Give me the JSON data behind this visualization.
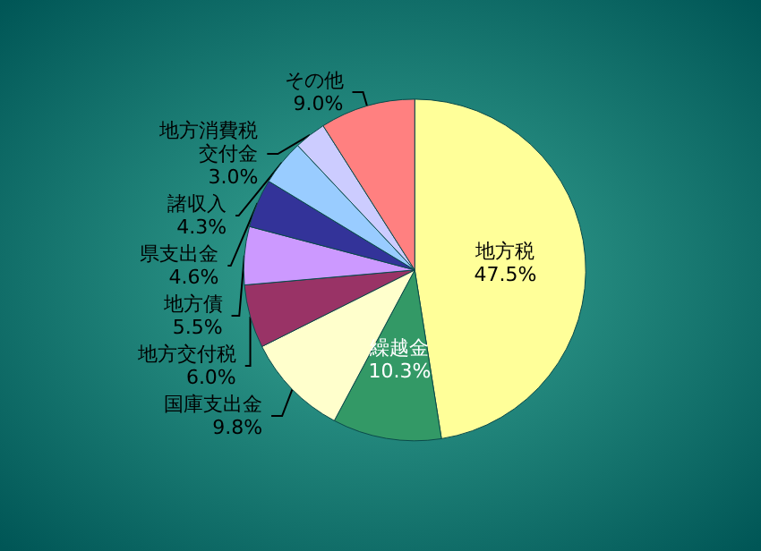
{
  "chart_data": {
    "type": "pie",
    "categories": [
      "地方税",
      "繰越金",
      "国庫支出金",
      "地方交付税",
      "地方債",
      "県支出金",
      "諸収入",
      "地方消費税交付金",
      "その他"
    ],
    "values": [
      47.5,
      10.3,
      9.8,
      6.0,
      5.5,
      4.6,
      4.3,
      3.0,
      9.0
    ],
    "value_labels": [
      "47.5%",
      "10.3%",
      "9.8%",
      "6.0%",
      "5.5%",
      "4.6%",
      "4.3%",
      "3.0%",
      "9.0%"
    ],
    "colors": [
      "#ffff99",
      "#339966",
      "#ffffcc",
      "#993366",
      "#cc99ff",
      "#333399",
      "#99ccff",
      "#ccccff",
      "#ff8080"
    ]
  }
}
